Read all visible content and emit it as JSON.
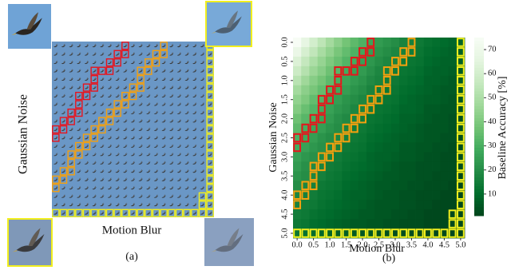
{
  "figure_a": {
    "y_label": "Gaussian Noise",
    "x_label": "Motion Blur",
    "caption": "(a)"
  },
  "chart_data": {
    "type": "heatmap",
    "caption": "(b)",
    "x_label": "Motion Blur",
    "y_label": "Gaussian Noise",
    "colorbar_label": "Baseline Accuracy [%]",
    "colormap": "Greens",
    "x": [
      0,
      0.25,
      0.5,
      0.75,
      1,
      1.25,
      1.5,
      1.75,
      2,
      2.25,
      2.5,
      2.75,
      3,
      3.25,
      3.5,
      3.75,
      4,
      4.25,
      4.5,
      4.75,
      5
    ],
    "y": [
      0,
      0.25,
      0.5,
      0.75,
      1,
      1.25,
      1.5,
      1.75,
      2,
      2.25,
      2.5,
      2.75,
      3,
      3.25,
      3.5,
      3.75,
      4,
      4.25,
      4.5,
      4.75,
      5
    ],
    "xlim": [
      -0.125,
      5.125
    ],
    "ylim": [
      -0.125,
      5.125
    ],
    "xticks": [
      {
        "value": 0,
        "label": "0.0"
      },
      {
        "value": 0.5,
        "label": "0.5"
      },
      {
        "value": 1,
        "label": "1.0"
      },
      {
        "value": 1.5,
        "label": "1.5"
      },
      {
        "value": 2,
        "label": "2.0"
      },
      {
        "value": 2.5,
        "label": "2.5"
      },
      {
        "value": 3,
        "label": "3.0"
      },
      {
        "value": 3.5,
        "label": "3.5"
      },
      {
        "value": 4,
        "label": "4.0"
      },
      {
        "value": 4.5,
        "label": "4.5"
      },
      {
        "value": 5,
        "label": "5.0"
      }
    ],
    "yticks": [
      {
        "value": 0,
        "label": "0.0"
      },
      {
        "value": 0.5,
        "label": "0.5"
      },
      {
        "value": 1,
        "label": "1.0"
      },
      {
        "value": 1.5,
        "label": "1.5"
      },
      {
        "value": 2,
        "label": "2.0"
      },
      {
        "value": 2.5,
        "label": "2.5"
      },
      {
        "value": 3,
        "label": "3.0"
      },
      {
        "value": 3.5,
        "label": "3.5"
      },
      {
        "value": 4,
        "label": "4.0"
      },
      {
        "value": 4.5,
        "label": "4.5"
      },
      {
        "value": 5,
        "label": "5.0"
      }
    ],
    "clim": [
      1,
      75
    ],
    "cticks": [
      10,
      20,
      30,
      40,
      50,
      60,
      70
    ],
    "values": [
      [
        75,
        67,
        60,
        54,
        48,
        43,
        38,
        34,
        31,
        27,
        24,
        22,
        20,
        17,
        16,
        14,
        12,
        11,
        10,
        9,
        8
      ],
      [
        69,
        61,
        55,
        49,
        44,
        39,
        35,
        31,
        28,
        25,
        22,
        20,
        18,
        16,
        15,
        13,
        11,
        10,
        9,
        8,
        7
      ],
      [
        63,
        56,
        50,
        45,
        40,
        36,
        32,
        29,
        26,
        23,
        20,
        18,
        17,
        14,
        13,
        12,
        10,
        9,
        8,
        8,
        7
      ],
      [
        58,
        52,
        46,
        42,
        37,
        33,
        29,
        26,
        24,
        21,
        18,
        17,
        15,
        13,
        12,
        11,
        9,
        8,
        8,
        7,
        6
      ],
      [
        53,
        47,
        42,
        38,
        34,
        30,
        27,
        24,
        22,
        19,
        17,
        15,
        14,
        12,
        11,
        10,
        8,
        8,
        7,
        6,
        6
      ],
      [
        48,
        43,
        39,
        35,
        31,
        28,
        25,
        22,
        20,
        17,
        15,
        14,
        13,
        11,
        10,
        9,
        8,
        7,
        6,
        6,
        5
      ],
      [
        44,
        40,
        35,
        32,
        28,
        25,
        22,
        20,
        18,
        16,
        14,
        13,
        12,
        10,
        9,
        8,
        7,
        7,
        6,
        5,
        5
      ],
      [
        41,
        36,
        32,
        29,
        26,
        23,
        21,
        18,
        17,
        15,
        13,
        12,
        11,
        9,
        9,
        8,
        6,
        6,
        5,
        5,
        4
      ],
      [
        37,
        33,
        30,
        27,
        24,
        21,
        19,
        17,
        15,
        13,
        12,
        11,
        10,
        8,
        8,
        7,
        6,
        5,
        5,
        4,
        4
      ],
      [
        34,
        30,
        27,
        25,
        22,
        20,
        17,
        15,
        14,
        12,
        11,
        10,
        9,
        8,
        7,
        6,
        5,
        5,
        5,
        4,
        4
      ],
      [
        31,
        28,
        25,
        22,
        20,
        18,
        16,
        14,
        13,
        11,
        10,
        9,
        8,
        7,
        7,
        6,
        5,
        5,
        4,
        4,
        3
      ],
      [
        29,
        26,
        23,
        21,
        18,
        16,
        14,
        13,
        12,
        10,
        9,
        8,
        8,
        6,
        6,
        5,
        5,
        4,
        4,
        3,
        3
      ],
      [
        26,
        23,
        21,
        19,
        17,
        15,
        13,
        12,
        11,
        9,
        8,
        8,
        7,
        6,
        6,
        5,
        4,
        4,
        3,
        3,
        3
      ],
      [
        24,
        21,
        19,
        17,
        15,
        14,
        12,
        11,
        10,
        9,
        8,
        7,
        6,
        5,
        5,
        4,
        4,
        4,
        3,
        3,
        3
      ],
      [
        22,
        20,
        18,
        16,
        14,
        13,
        11,
        10,
        9,
        8,
        7,
        6,
        6,
        5,
        5,
        4,
        4,
        3,
        3,
        3,
        2
      ],
      [
        20,
        18,
        16,
        14,
        13,
        12,
        10,
        9,
        8,
        7,
        6,
        6,
        5,
        5,
        4,
        4,
        3,
        3,
        3,
        2,
        2
      ],
      [
        18,
        16,
        15,
        13,
        12,
        11,
        9,
        8,
        8,
        7,
        6,
        5,
        5,
        4,
        4,
        3,
        3,
        3,
        2,
        2,
        2
      ],
      [
        17,
        15,
        14,
        12,
        11,
        10,
        9,
        8,
        7,
        6,
        5,
        5,
        5,
        4,
        4,
        3,
        3,
        2,
        2,
        2,
        2
      ],
      [
        15,
        14,
        12,
        11,
        10,
        9,
        8,
        7,
        6,
        6,
        5,
        5,
        4,
        4,
        3,
        3,
        2,
        2,
        2,
        2,
        2
      ],
      [
        14,
        13,
        11,
        10,
        9,
        8,
        7,
        6,
        6,
        5,
        5,
        4,
        4,
        3,
        3,
        3,
        2,
        2,
        2,
        2,
        2
      ],
      [
        13,
        12,
        10,
        9,
        8,
        7,
        7,
        6,
        5,
        5,
        4,
        4,
        3,
        3,
        3,
        2,
        2,
        2,
        2,
        2,
        1
      ]
    ],
    "highlights": [
      {
        "color": "#e8141c",
        "cells": [
          [
            0,
            9
          ],
          [
            1,
            8
          ],
          [
            1,
            9
          ],
          [
            2,
            7
          ],
          [
            2,
            8
          ],
          [
            3,
            5
          ],
          [
            3,
            6
          ],
          [
            3,
            7
          ],
          [
            4,
            5
          ],
          [
            5,
            4
          ],
          [
            5,
            5
          ],
          [
            6,
            3
          ],
          [
            6,
            4
          ],
          [
            7,
            3
          ],
          [
            8,
            2
          ],
          [
            8,
            3
          ],
          [
            9,
            1
          ],
          [
            9,
            2
          ],
          [
            10,
            0
          ],
          [
            10,
            1
          ],
          [
            11,
            0
          ]
        ]
      },
      {
        "color": "#f5a00f",
        "cells": [
          [
            0,
            14
          ],
          [
            1,
            13
          ],
          [
            1,
            14
          ],
          [
            2,
            12
          ],
          [
            2,
            13
          ],
          [
            3,
            11
          ],
          [
            3,
            12
          ],
          [
            4,
            11
          ],
          [
            5,
            10
          ],
          [
            5,
            11
          ],
          [
            6,
            9
          ],
          [
            6,
            10
          ],
          [
            7,
            8
          ],
          [
            7,
            9
          ],
          [
            8,
            7
          ],
          [
            8,
            8
          ],
          [
            9,
            6
          ],
          [
            9,
            7
          ],
          [
            10,
            5
          ],
          [
            10,
            6
          ],
          [
            11,
            4
          ],
          [
            11,
            5
          ],
          [
            12,
            3
          ],
          [
            12,
            4
          ],
          [
            13,
            2
          ],
          [
            13,
            3
          ],
          [
            14,
            2
          ],
          [
            15,
            1
          ],
          [
            15,
            2
          ],
          [
            16,
            0
          ],
          [
            16,
            1
          ],
          [
            17,
            0
          ]
        ]
      },
      {
        "color": "#f2ef1e",
        "cells": [
          [
            0,
            20
          ],
          [
            1,
            20
          ],
          [
            2,
            20
          ],
          [
            3,
            20
          ],
          [
            4,
            20
          ],
          [
            5,
            20
          ],
          [
            6,
            20
          ],
          [
            7,
            20
          ],
          [
            8,
            20
          ],
          [
            9,
            20
          ],
          [
            10,
            20
          ],
          [
            11,
            20
          ],
          [
            12,
            20
          ],
          [
            13,
            20
          ],
          [
            14,
            20
          ],
          [
            15,
            20
          ],
          [
            16,
            20
          ],
          [
            17,
            20
          ],
          [
            18,
            20
          ],
          [
            19,
            20
          ],
          [
            20,
            20
          ],
          [
            18,
            19
          ],
          [
            19,
            19
          ],
          [
            20,
            0
          ],
          [
            20,
            1
          ],
          [
            20,
            2
          ],
          [
            20,
            3
          ],
          [
            20,
            4
          ],
          [
            20,
            5
          ],
          [
            20,
            6
          ],
          [
            20,
            7
          ],
          [
            20,
            8
          ],
          [
            20,
            9
          ],
          [
            20,
            10
          ],
          [
            20,
            11
          ],
          [
            20,
            12
          ],
          [
            20,
            13
          ],
          [
            20,
            14
          ],
          [
            20,
            15
          ],
          [
            20,
            16
          ],
          [
            20,
            17
          ],
          [
            20,
            18
          ],
          [
            20,
            19
          ]
        ]
      }
    ]
  }
}
